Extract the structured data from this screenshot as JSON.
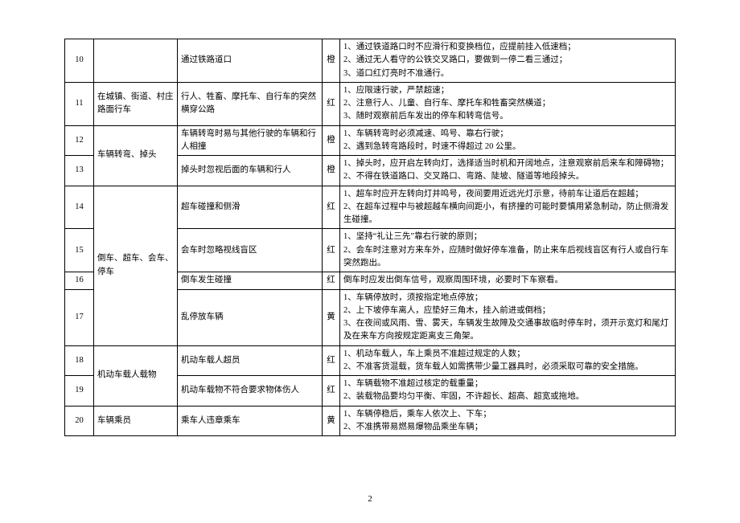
{
  "page_number": "2",
  "col_widths": {
    "num": 36,
    "cat": 104,
    "haz": 180,
    "lvl": 22
  },
  "colors": {
    "text": "#000000",
    "border": "#000000",
    "background": "#ffffff"
  },
  "font": {
    "family": "SimSun",
    "size_pt": 10.5,
    "line_height": 1.55
  },
  "rows": [
    {
      "num": "10",
      "category": "",
      "hazard": "通过铁路道口",
      "level": "橙",
      "remarks": [
        "1、通过铁道路口时不应滑行和变换档位，应提前挂入低速档；",
        "2、通过无人看守的公铁交叉路口，要做到一停二看三通过；",
        "3、道口红灯亮时不准通行。"
      ]
    },
    {
      "num": "11",
      "category": "在城镇、街道、村庄路面行车",
      "hazard": "行人、牲畜、摩托车、自行车的突然横穿公路",
      "level": "红",
      "remarks": [
        "1、应限速行驶，严禁超速；",
        "2、注意行人、儿童、自行车、摩托车和牲畜突然横道；",
        "3、随时观察前后车发出的停车和转弯信号。"
      ]
    },
    {
      "num": "12",
      "category": "车辆转弯、掉头",
      "cat_rowspan": 2,
      "hazard": "车辆转弯时易与其他行驶的车辆和行人相撞",
      "level": "橙",
      "remarks": [
        "1、车辆转弯时必须减速、鸣号、靠右行驶；",
        "2、遇到急转弯路段时，时速不得超过 20 公里。"
      ]
    },
    {
      "num": "13",
      "hazard": "掉头时忽视后面的车辆和行人",
      "level": "橙",
      "remarks": [
        "1、掉头时，应开启左转向灯，选择适当时机和开阔地点，注意观察前后来车和障碍物；",
        "2、不得在铁道路口、交叉路口、弯路、陡坡、隧道等地段掉头。"
      ]
    },
    {
      "num": "14",
      "category": "倒车、超车、会车、停车",
      "cat_rowspan": 4,
      "hazard": "超车碰撞和侧滑",
      "level": "红",
      "remarks": [
        "1、超车时应开左转向灯并鸣号，夜间要用近远光灯示意，待前车让道后在超越；",
        "2、在超车过程中与被超越车横向间距小，有挤撞的可能时要慎用紧急制动，防止侧滑发生碰撞。"
      ]
    },
    {
      "num": "15",
      "hazard": "会车时忽略视线盲区",
      "level": "红",
      "remarks": [
        "1、坚持“礼让三先”靠右行驶的原则；",
        "2、会车时注意对方来车外，应随时做好停车准备，防止来车后视线盲区有行人或自行车突然跑出。"
      ]
    },
    {
      "num": "16",
      "hazard": "倒车发生碰撞",
      "level": "红",
      "remarks": [
        "倒车时应发出倒车信号，观察周围环境，必要时下车察看。"
      ]
    },
    {
      "num": "17",
      "hazard": "乱停放车辆",
      "level": "黄",
      "remarks": [
        "1、车辆停放时，须按指定地点停放；",
        "2、上下坡停车离人，应垫好三角木，挂入前进或倒档；",
        "3、在夜间或风雨、雪、雾天，车辆发生故障及交通事故临时停车时，须开示宽灯和尾灯及在来车方向按规定距离支三角架。"
      ]
    },
    {
      "num": "18",
      "category": "机动车载人载物",
      "cat_rowspan": 2,
      "hazard": "机动车载人超员",
      "level": "红",
      "remarks": [
        "1、机动车载人，车上乘员不准超过规定的人数；",
        "2、不准客货混载，货车载人如需携带少量工器具时，必须采取可靠的安全措施。"
      ]
    },
    {
      "num": "19",
      "hazard": "机动车载物不符合要求物体伤人",
      "level": "红",
      "remarks": [
        "1、车辆载物不准超过核定的载重量；",
        "2、装载物品要均匀平衡、牢固，不许超长、超高、超宽或拖地。"
      ]
    },
    {
      "num": "20",
      "category": "车辆乘员",
      "hazard": "乘车人违章乘车",
      "level": "黄",
      "remarks": [
        "1、车辆停稳后，乘车人依次上、下车；",
        "2、不准携带易燃易爆物品乘坐车辆；"
      ]
    }
  ]
}
